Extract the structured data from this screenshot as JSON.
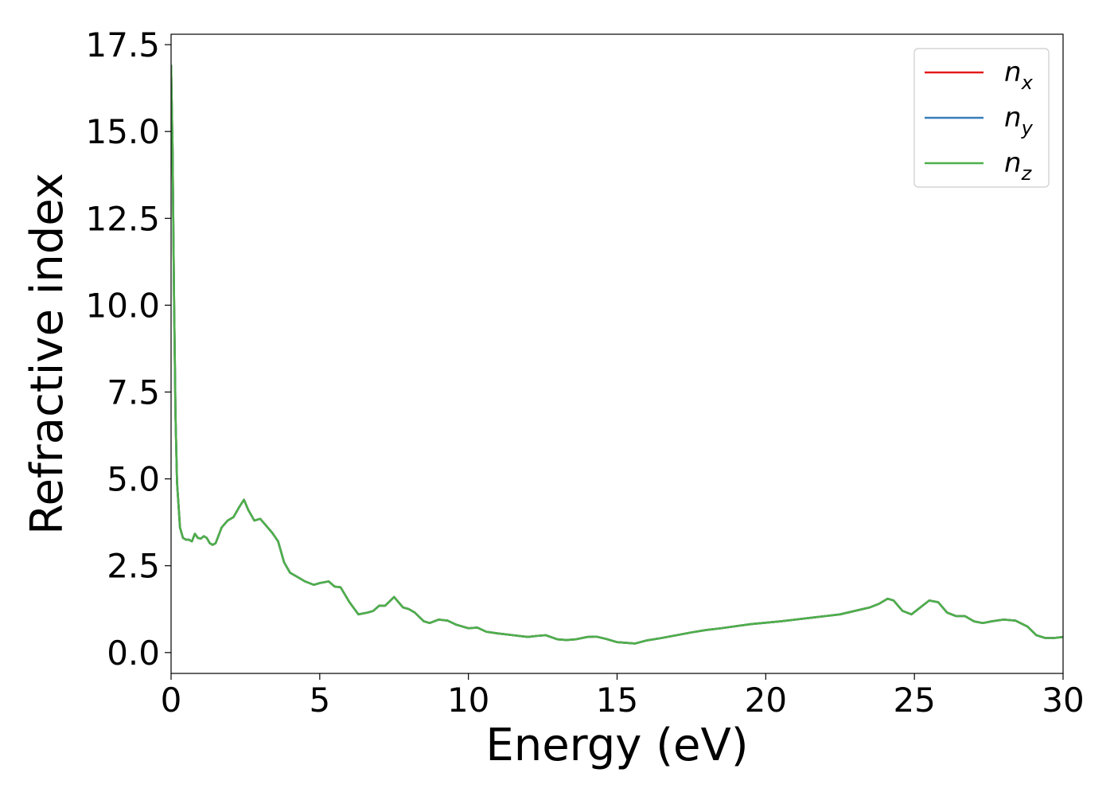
{
  "chart_data": {
    "type": "line",
    "title": "",
    "xlabel": "Energy (eV)",
    "ylabel": "Refractive index",
    "xlim": [
      0,
      30
    ],
    "ylim": [
      -0.6,
      17.8
    ],
    "xticks": [
      0,
      5,
      10,
      15,
      20,
      25,
      30
    ],
    "xtick_labels": [
      "0",
      "5",
      "10",
      "15",
      "20",
      "25",
      "30"
    ],
    "yticks": [
      0,
      2.5,
      5,
      7.5,
      10,
      12.5,
      15,
      17.5
    ],
    "ytick_labels": [
      "0.0",
      "2.5",
      "5.0",
      "7.5",
      "10.0",
      "12.5",
      "15.0",
      "17.5"
    ],
    "grid": false,
    "legend_position": "top-right",
    "x": [
      0.0,
      0.05,
      0.1,
      0.15,
      0.2,
      0.3,
      0.4,
      0.5,
      0.6,
      0.7,
      0.8,
      0.9,
      1.0,
      1.1,
      1.2,
      1.3,
      1.4,
      1.5,
      1.7,
      1.9,
      2.1,
      2.3,
      2.45,
      2.6,
      2.8,
      3.0,
      3.2,
      3.4,
      3.6,
      3.8,
      4.0,
      4.2,
      4.5,
      4.8,
      5.0,
      5.3,
      5.5,
      5.7,
      6.0,
      6.3,
      6.6,
      6.8,
      7.0,
      7.2,
      7.5,
      7.8,
      8.0,
      8.2,
      8.5,
      8.7,
      9.0,
      9.3,
      9.6,
      10.0,
      10.3,
      10.6,
      11.0,
      11.5,
      12.0,
      12.3,
      12.6,
      13.0,
      13.3,
      13.6,
      14.0,
      14.3,
      14.6,
      15.0,
      15.3,
      15.6,
      16.0,
      16.5,
      17.0,
      17.5,
      18.0,
      18.5,
      19.0,
      19.5,
      20.0,
      20.5,
      21.0,
      21.5,
      22.0,
      22.5,
      23.0,
      23.5,
      23.8,
      24.1,
      24.3,
      24.6,
      24.9,
      25.2,
      25.5,
      25.8,
      26.1,
      26.4,
      26.7,
      27.0,
      27.3,
      27.6,
      28.0,
      28.4,
      28.8,
      29.1,
      29.4,
      29.7,
      30.0
    ],
    "series": [
      {
        "name": "n_x",
        "label_main": "n",
        "label_sub": "x",
        "color": "#e41a1c",
        "values": [
          16.9,
          14.5,
          10.2,
          6.8,
          4.9,
          3.6,
          3.3,
          3.25,
          3.25,
          3.2,
          3.42,
          3.3,
          3.28,
          3.35,
          3.3,
          3.15,
          3.1,
          3.15,
          3.6,
          3.8,
          3.9,
          4.2,
          4.4,
          4.1,
          3.8,
          3.85,
          3.65,
          3.45,
          3.2,
          2.6,
          2.3,
          2.2,
          2.05,
          1.95,
          2.0,
          2.05,
          1.9,
          1.88,
          1.45,
          1.1,
          1.15,
          1.2,
          1.35,
          1.35,
          1.6,
          1.3,
          1.25,
          1.15,
          0.9,
          0.85,
          0.95,
          0.92,
          0.8,
          0.7,
          0.72,
          0.6,
          0.55,
          0.5,
          0.45,
          0.48,
          0.5,
          0.38,
          0.36,
          0.38,
          0.45,
          0.46,
          0.4,
          0.3,
          0.28,
          0.26,
          0.35,
          0.42,
          0.5,
          0.58,
          0.65,
          0.7,
          0.76,
          0.82,
          0.86,
          0.9,
          0.95,
          1.0,
          1.05,
          1.1,
          1.2,
          1.3,
          1.4,
          1.55,
          1.5,
          1.2,
          1.1,
          1.3,
          1.5,
          1.45,
          1.15,
          1.05,
          1.05,
          0.9,
          0.85,
          0.9,
          0.95,
          0.92,
          0.75,
          0.5,
          0.42,
          0.42,
          0.45
        ]
      },
      {
        "name": "n_y",
        "label_main": "n",
        "label_sub": "y",
        "color": "#377eb8",
        "values": [
          16.9,
          14.5,
          10.2,
          6.8,
          4.9,
          3.6,
          3.3,
          3.25,
          3.25,
          3.2,
          3.42,
          3.3,
          3.28,
          3.35,
          3.3,
          3.15,
          3.1,
          3.15,
          3.6,
          3.8,
          3.9,
          4.2,
          4.4,
          4.1,
          3.8,
          3.85,
          3.65,
          3.45,
          3.2,
          2.6,
          2.3,
          2.2,
          2.05,
          1.95,
          2.0,
          2.05,
          1.9,
          1.88,
          1.45,
          1.1,
          1.15,
          1.2,
          1.35,
          1.35,
          1.6,
          1.3,
          1.25,
          1.15,
          0.9,
          0.85,
          0.95,
          0.92,
          0.8,
          0.7,
          0.72,
          0.6,
          0.55,
          0.5,
          0.45,
          0.48,
          0.5,
          0.38,
          0.36,
          0.38,
          0.45,
          0.46,
          0.4,
          0.3,
          0.28,
          0.26,
          0.35,
          0.42,
          0.5,
          0.58,
          0.65,
          0.7,
          0.76,
          0.82,
          0.86,
          0.9,
          0.95,
          1.0,
          1.05,
          1.1,
          1.2,
          1.3,
          1.4,
          1.55,
          1.5,
          1.2,
          1.1,
          1.3,
          1.5,
          1.45,
          1.15,
          1.05,
          1.05,
          0.9,
          0.85,
          0.9,
          0.95,
          0.92,
          0.75,
          0.5,
          0.42,
          0.42,
          0.45
        ]
      },
      {
        "name": "n_z",
        "label_main": "n",
        "label_sub": "z",
        "color": "#4daf4a",
        "values": [
          16.9,
          14.5,
          10.2,
          6.8,
          4.9,
          3.6,
          3.3,
          3.25,
          3.25,
          3.2,
          3.42,
          3.3,
          3.28,
          3.35,
          3.3,
          3.15,
          3.1,
          3.15,
          3.6,
          3.8,
          3.9,
          4.2,
          4.4,
          4.1,
          3.8,
          3.85,
          3.65,
          3.45,
          3.2,
          2.6,
          2.3,
          2.2,
          2.05,
          1.95,
          2.0,
          2.05,
          1.9,
          1.88,
          1.45,
          1.1,
          1.15,
          1.2,
          1.35,
          1.35,
          1.6,
          1.3,
          1.25,
          1.15,
          0.9,
          0.85,
          0.95,
          0.92,
          0.8,
          0.7,
          0.72,
          0.6,
          0.55,
          0.5,
          0.45,
          0.48,
          0.5,
          0.38,
          0.36,
          0.38,
          0.45,
          0.46,
          0.4,
          0.3,
          0.28,
          0.26,
          0.35,
          0.42,
          0.5,
          0.58,
          0.65,
          0.7,
          0.76,
          0.82,
          0.86,
          0.9,
          0.95,
          1.0,
          1.05,
          1.1,
          1.2,
          1.3,
          1.4,
          1.55,
          1.5,
          1.2,
          1.1,
          1.3,
          1.5,
          1.45,
          1.15,
          1.05,
          1.05,
          0.9,
          0.85,
          0.9,
          0.95,
          0.92,
          0.75,
          0.5,
          0.42,
          0.42,
          0.45
        ]
      }
    ]
  }
}
